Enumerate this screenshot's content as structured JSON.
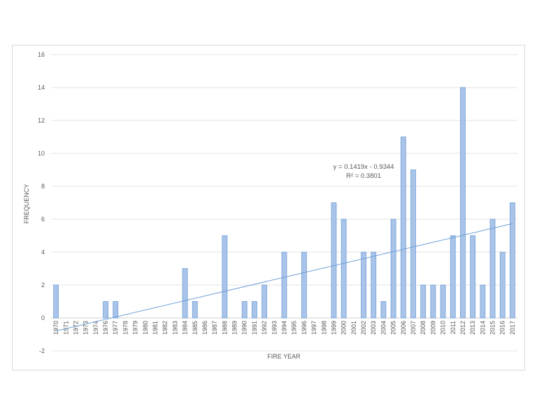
{
  "chart_data": {
    "type": "bar",
    "title": "",
    "xlabel": "FIRE YEAR",
    "ylabel": "FREQUENCY",
    "ylim": [
      -2,
      16
    ],
    "y_ticks": [
      -2,
      0,
      2,
      4,
      6,
      8,
      10,
      12,
      14,
      16
    ],
    "grid": true,
    "legend": "none",
    "bar_color": "#a9c4e8",
    "bar_edge_color": "#6f9fd8",
    "categories": [
      "1970",
      "1971",
      "1972",
      "1973",
      "1974",
      "1976",
      "1977",
      "1978",
      "1979",
      "1980",
      "1981",
      "1982",
      "1983",
      "1984",
      "1985",
      "1986",
      "1987",
      "1988",
      "1989",
      "1990",
      "1991",
      "1992",
      "1993",
      "1994",
      "1995",
      "1996",
      "1997",
      "1998",
      "1999",
      "2000",
      "2001",
      "2002",
      "2003",
      "2004",
      "2005",
      "2006",
      "2007",
      "2008",
      "2009",
      "2010",
      "2011",
      "2012",
      "2013",
      "2014",
      "2015",
      "2016",
      "2017"
    ],
    "values": [
      2,
      0,
      0,
      0,
      0,
      1,
      1,
      0,
      0,
      0,
      0,
      0,
      0,
      3,
      1,
      0,
      0,
      5,
      0,
      1,
      1,
      2,
      0,
      4,
      0,
      4,
      0,
      0,
      7,
      6,
      0,
      4,
      4,
      1,
      6,
      11,
      9,
      2,
      2,
      2,
      5,
      14,
      5,
      2,
      6,
      4,
      7
    ],
    "trendline": {
      "type": "linear",
      "color": "#6f9fd8",
      "slope": 0.1419,
      "intercept": -0.9344,
      "equation_label": "y = 0.1419x - 0.9344",
      "r2_label": "R² = 0.3801"
    }
  }
}
